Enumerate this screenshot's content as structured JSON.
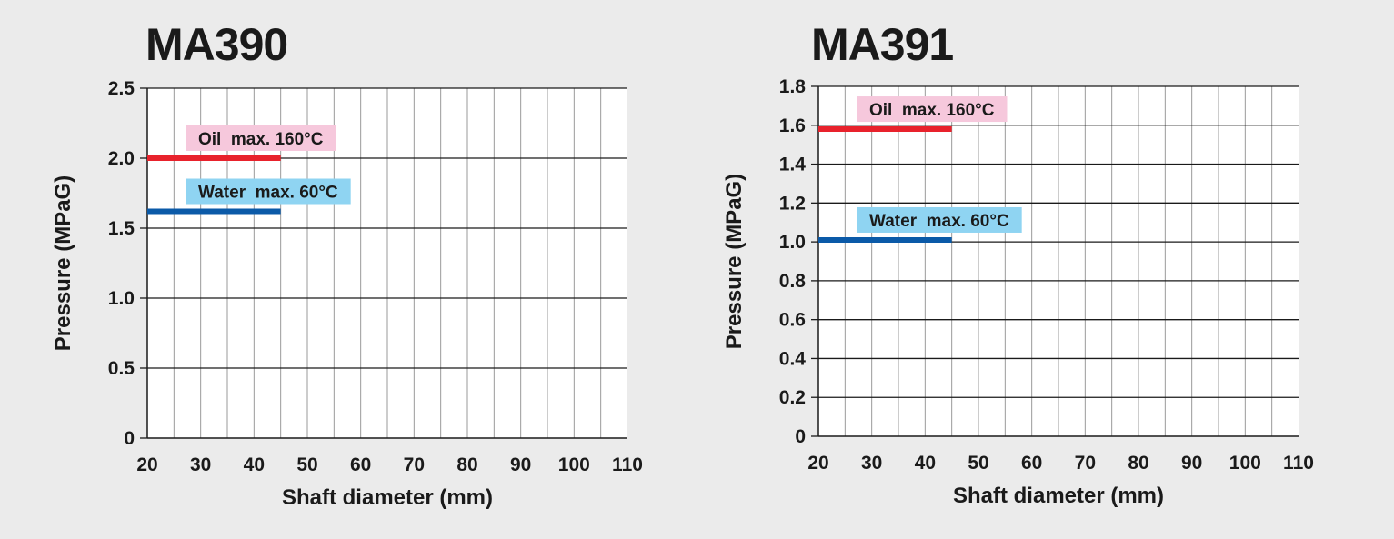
{
  "chart_data": [
    {
      "type": "line",
      "title": "MA390",
      "xlabel": "Shaft diameter (mm)",
      "ylabel": "Pressure (MPaG)",
      "xlim": [
        20,
        110
      ],
      "ylim": [
        0,
        2.5
      ],
      "x_ticks": [
        20,
        30,
        40,
        50,
        60,
        70,
        80,
        90,
        100,
        110
      ],
      "x_tick_labels": [
        "20",
        "30",
        "40",
        "50",
        "60",
        "70",
        "80",
        "90",
        "100",
        "110"
      ],
      "y_ticks": [
        0,
        0.5,
        1.0,
        1.5,
        2.0,
        2.5
      ],
      "y_tick_labels": [
        "0",
        "0.5",
        "1.0",
        "1.5",
        "2.0",
        "2.5"
      ],
      "grid": true,
      "series": [
        {
          "name": "Oil  max. 160°C",
          "x": [
            20,
            45
          ],
          "y": [
            2.0,
            2.0
          ],
          "color": "#e8222c",
          "label_bg": "#f6c8dc"
        },
        {
          "name": "Water  max. 60°C",
          "x": [
            20,
            45
          ],
          "y": [
            1.62,
            1.62
          ],
          "color": "#0b5aa8",
          "label_bg": "#8fd4f2"
        }
      ]
    },
    {
      "type": "line",
      "title": "MA391",
      "xlabel": "Shaft diameter (mm)",
      "ylabel": "Pressure (MPaG)",
      "xlim": [
        20,
        110
      ],
      "ylim": [
        0,
        1.8
      ],
      "x_ticks": [
        20,
        30,
        40,
        50,
        60,
        70,
        80,
        90,
        100,
        110
      ],
      "x_tick_labels": [
        "20",
        "30",
        "40",
        "50",
        "60",
        "70",
        "80",
        "90",
        "100",
        "110"
      ],
      "y_ticks": [
        0,
        0.2,
        0.4,
        0.6,
        0.8,
        1.0,
        1.2,
        1.4,
        1.6,
        1.8
      ],
      "y_tick_labels": [
        "0",
        "0.2",
        "0.4",
        "0.6",
        "0.8",
        "1.0",
        "1.2",
        "1.4",
        "1.6",
        "1.8"
      ],
      "grid": true,
      "series": [
        {
          "name": "Oil  max. 160°C",
          "x": [
            20,
            45
          ],
          "y": [
            1.58,
            1.58
          ],
          "color": "#e8222c",
          "label_bg": "#f6c8dc"
        },
        {
          "name": "Water  max. 60°C",
          "x": [
            20,
            45
          ],
          "y": [
            1.01,
            1.01
          ],
          "color": "#0b5aa8",
          "label_bg": "#8fd4f2"
        }
      ]
    }
  ]
}
